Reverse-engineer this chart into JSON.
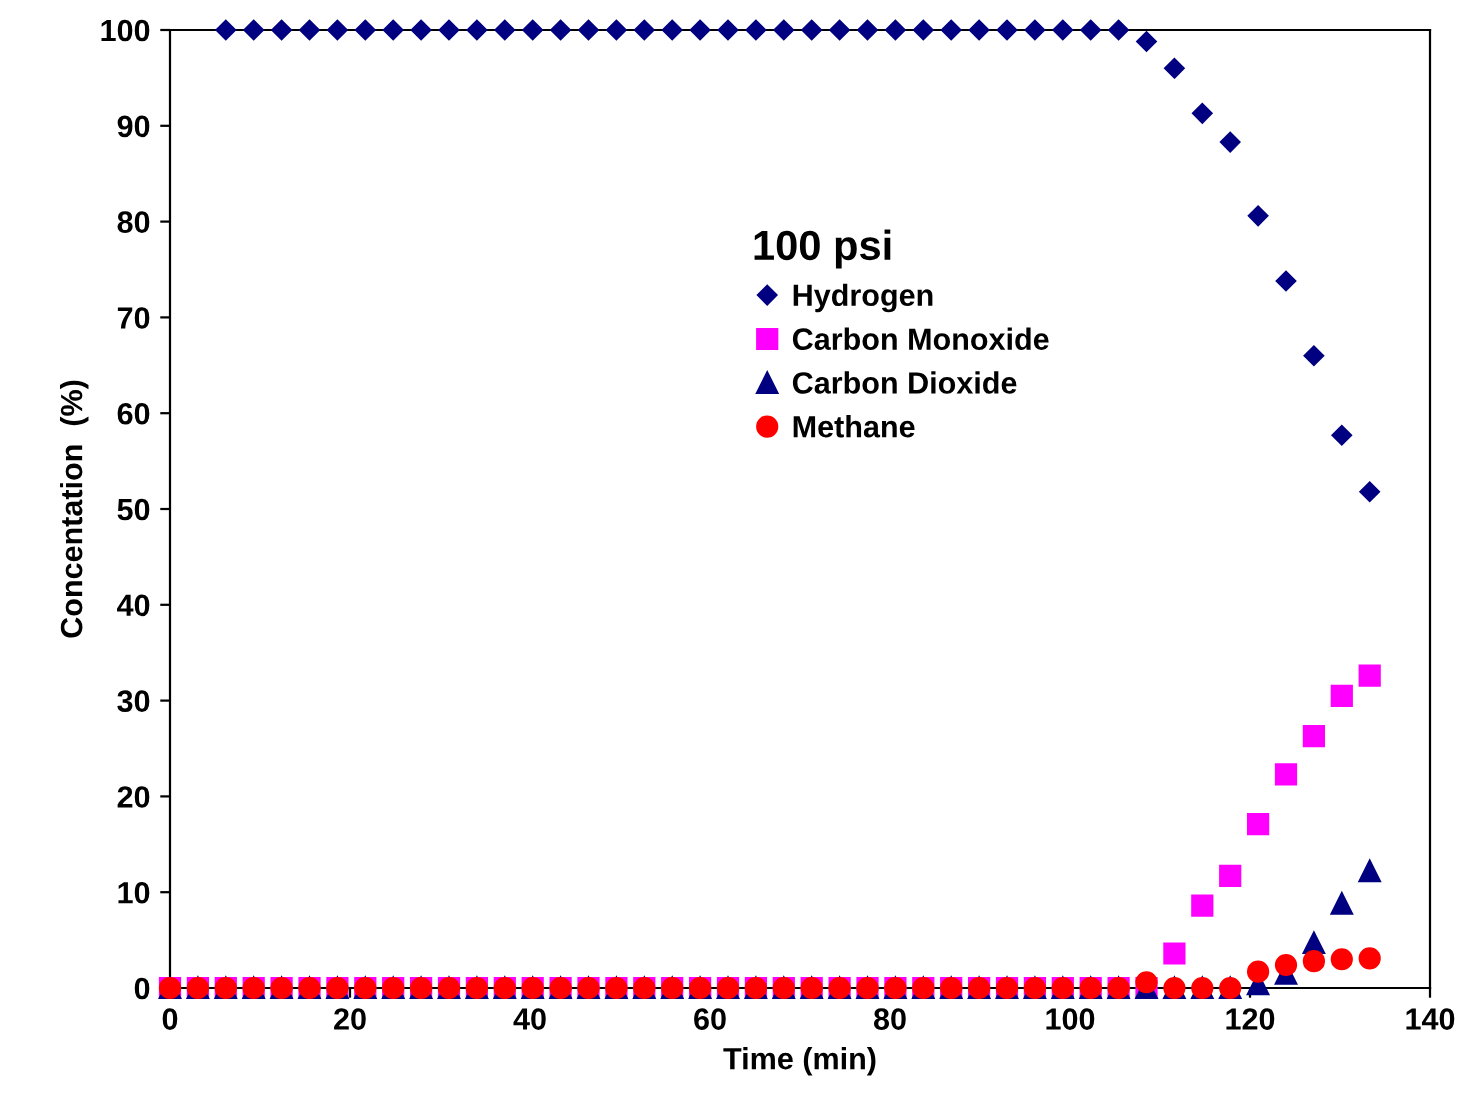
{
  "chart_data": {
    "type": "scatter",
    "xlabel": "Time (min)",
    "ylabel": "Concentation  (%)",
    "legend_title": "100 psi",
    "legend": "center",
    "x": [
      0,
      3.1,
      6.2,
      9.3,
      12.4,
      15.5,
      18.6,
      21.7,
      24.8,
      27.9,
      31,
      34.1,
      37.2,
      40.3,
      43.4,
      46.5,
      49.6,
      52.7,
      55.8,
      58.9,
      62,
      65.1,
      68.2,
      71.3,
      74.4,
      77.5,
      80.6,
      83.7,
      86.8,
      89.9,
      93,
      96.1,
      99.2,
      102.3,
      105.4,
      108.5,
      111.6,
      114.7,
      117.8,
      120.9,
      124,
      127.1,
      130.2,
      133.3
    ],
    "series": [
      {
        "name": "Hydrogen",
        "color": "#000080",
        "marker": "diamond",
        "values": [
          null,
          null,
          100,
          100,
          100,
          100,
          100,
          100,
          100,
          100,
          100,
          100,
          100,
          100,
          100,
          100,
          100,
          100,
          100,
          100,
          100,
          100,
          100,
          100,
          100,
          100,
          100,
          100,
          100,
          100,
          100,
          100,
          100,
          100,
          100,
          98.8,
          96,
          91.3,
          88.3,
          80.6,
          73.8,
          66,
          57.7,
          51.8
        ]
      },
      {
        "name": "Carbon Monoxide",
        "color": "#ff00ff",
        "marker": "square",
        "values": [
          0,
          0,
          0,
          0,
          0,
          0,
          0,
          0,
          0,
          0,
          0,
          0,
          0,
          0,
          0,
          0,
          0,
          0,
          0,
          0,
          0,
          0,
          0,
          0,
          0,
          0,
          0,
          0,
          0,
          0,
          0,
          0,
          0,
          0,
          0,
          0,
          3.6,
          8.6,
          11.7,
          17.1,
          22.3,
          26.3,
          30.5,
          32.6
        ]
      },
      {
        "name": "Carbon Dioxide",
        "color": "#000080",
        "marker": "triangle",
        "values": [
          0,
          0,
          0,
          0,
          0,
          0,
          0,
          0,
          0,
          0,
          0,
          0,
          0,
          0,
          0,
          0,
          0,
          0,
          0,
          0,
          0,
          0,
          0,
          0,
          0,
          0,
          0,
          0,
          0,
          0,
          0,
          0,
          0,
          0,
          0,
          0,
          0,
          0,
          0,
          0.4,
          1.5,
          4.7,
          8.8,
          12.2
        ]
      },
      {
        "name": "Methane",
        "color": "#ff0000",
        "marker": "circle",
        "values": [
          0,
          0,
          0,
          0,
          0,
          0,
          0,
          0,
          0,
          0,
          0,
          0,
          0,
          0,
          0,
          0,
          0,
          0,
          0,
          0,
          0,
          0,
          0,
          0,
          0,
          0,
          0,
          0,
          0,
          0,
          0,
          0,
          0,
          0,
          0,
          0.6,
          0,
          0,
          0,
          1.7,
          2.4,
          2.8,
          3.0,
          3.1
        ]
      }
    ],
    "xlim": [
      0,
      140
    ],
    "xticks": [
      0,
      20,
      40,
      60,
      80,
      100,
      120,
      140
    ],
    "ylim": [
      0,
      100
    ],
    "yticks": [
      0,
      10,
      20,
      30,
      40,
      50,
      60,
      70,
      80,
      90,
      100
    ],
    "grid": false
  }
}
